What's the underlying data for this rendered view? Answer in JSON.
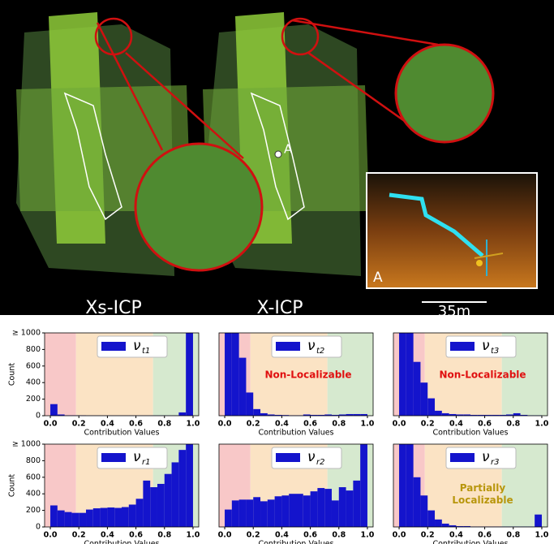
{
  "image": {
    "labels": [
      "Xs-ICP",
      "X-ICP"
    ],
    "scale_bar": "35m",
    "point_label": "A",
    "inset_label": "A"
  },
  "chart_data": [
    {
      "type": "histogram",
      "xlabel": "Contribution Values",
      "ylabel": "Count",
      "series": [
        {
          "name": "ν",
          "subscript": "t1",
          "color": "#1414cc",
          "values": [
            140,
            15,
            5,
            5,
            5,
            3,
            3,
            3,
            3,
            3,
            3,
            3,
            3,
            3,
            3,
            3,
            3,
            3,
            40,
            1000
          ]
        }
      ],
      "bins": [
        0,
        0.05,
        0.1,
        0.15,
        0.2,
        0.25,
        0.3,
        0.35,
        0.4,
        0.45,
        0.5,
        0.55,
        0.6,
        0.65,
        0.7,
        0.75,
        0.8,
        0.85,
        0.9,
        0.95,
        1.0
      ],
      "xlim": [
        -0.04,
        1.04
      ],
      "ylim": [
        0,
        1000
      ],
      "xticks": [
        {
          "value": 0,
          "label": "0.0"
        },
        {
          "value": 0.2,
          "label": "0.2"
        },
        {
          "value": 0.4,
          "label": "0.4"
        },
        {
          "value": 0.6,
          "label": "0.6"
        },
        {
          "value": 0.8,
          "label": "0.8"
        },
        {
          "value": 1,
          "label": "1.0"
        }
      ],
      "yticks": [
        0,
        200,
        400,
        600,
        800,
        {
          "value": 1000,
          "label": "≥ 1000"
        }
      ],
      "bands": [
        {
          "from": -0.04,
          "to": 0.18,
          "color": "#f8c8c8"
        },
        {
          "from": 0.18,
          "to": 0.72,
          "color": "#fbe3c4"
        },
        {
          "from": 0.72,
          "to": 1.04,
          "color": "#d6e9cf"
        }
      ]
    },
    {
      "type": "histogram",
      "xlabel": "Contribution Values",
      "series": [
        {
          "name": "ν",
          "subscript": "t2",
          "color": "#1414cc",
          "values": [
            1000,
            1000,
            700,
            280,
            80,
            30,
            15,
            10,
            8,
            5,
            5,
            15,
            10,
            10,
            15,
            10,
            15,
            20,
            20,
            20
          ]
        }
      ],
      "bins": [
        0,
        0.05,
        0.1,
        0.15,
        0.2,
        0.25,
        0.3,
        0.35,
        0.4,
        0.45,
        0.5,
        0.55,
        0.6,
        0.65,
        0.7,
        0.75,
        0.8,
        0.85,
        0.9,
        0.95,
        1.0
      ],
      "xlim": [
        -0.04,
        1.04
      ],
      "ylim": [
        0,
        1000
      ],
      "xticks": [
        {
          "value": 0,
          "label": "0.0"
        },
        {
          "value": 0.2,
          "label": "0.2"
        },
        {
          "value": 0.4,
          "label": "0.4"
        },
        {
          "value": 0.6,
          "label": "0.6"
        },
        {
          "value": 0.8,
          "label": "0.8"
        },
        {
          "value": 1,
          "label": "1.0"
        }
      ],
      "bands": [
        {
          "from": -0.04,
          "to": 0.18,
          "color": "#f8c8c8"
        },
        {
          "from": 0.18,
          "to": 0.72,
          "color": "#fbe3c4"
        },
        {
          "from": 0.72,
          "to": 1.04,
          "color": "#d6e9cf"
        }
      ],
      "annotation": {
        "lines": [
          "Non-Localizable"
        ],
        "color": "#e01010"
      }
    },
    {
      "type": "histogram",
      "xlabel": "Contribution Values",
      "series": [
        {
          "name": "ν",
          "subscript": "t3",
          "color": "#1414cc",
          "values": [
            1000,
            1000,
            650,
            400,
            210,
            60,
            30,
            20,
            15,
            15,
            10,
            10,
            10,
            10,
            10,
            15,
            30,
            10,
            5,
            5
          ]
        }
      ],
      "bins": [
        0,
        0.05,
        0.1,
        0.15,
        0.2,
        0.25,
        0.3,
        0.35,
        0.4,
        0.45,
        0.5,
        0.55,
        0.6,
        0.65,
        0.7,
        0.75,
        0.8,
        0.85,
        0.9,
        0.95,
        1.0
      ],
      "xlim": [
        -0.04,
        1.04
      ],
      "ylim": [
        0,
        1000
      ],
      "xticks": [
        {
          "value": 0,
          "label": "0.0"
        },
        {
          "value": 0.2,
          "label": "0.2"
        },
        {
          "value": 0.4,
          "label": "0.4"
        },
        {
          "value": 0.6,
          "label": "0.6"
        },
        {
          "value": 0.8,
          "label": "0.8"
        },
        {
          "value": 1,
          "label": "1.0"
        }
      ],
      "bands": [
        {
          "from": -0.04,
          "to": 0.18,
          "color": "#f8c8c8"
        },
        {
          "from": 0.18,
          "to": 0.72,
          "color": "#fbe3c4"
        },
        {
          "from": 0.72,
          "to": 1.04,
          "color": "#d6e9cf"
        }
      ],
      "annotation": {
        "lines": [
          "Non-Localizable"
        ],
        "color": "#e01010"
      }
    },
    {
      "type": "histogram",
      "xlabel": "Contribution Values",
      "ylabel": "Count",
      "series": [
        {
          "name": "ν",
          "subscript": "r1",
          "color": "#1414cc",
          "values": [
            260,
            200,
            180,
            170,
            170,
            210,
            225,
            230,
            235,
            230,
            240,
            270,
            340,
            560,
            480,
            520,
            640,
            780,
            930,
            1000
          ]
        }
      ],
      "bins": [
        0,
        0.05,
        0.1,
        0.15,
        0.2,
        0.25,
        0.3,
        0.35,
        0.4,
        0.45,
        0.5,
        0.55,
        0.6,
        0.65,
        0.7,
        0.75,
        0.8,
        0.85,
        0.9,
        0.95,
        1.0
      ],
      "xlim": [
        -0.04,
        1.04
      ],
      "ylim": [
        0,
        1000
      ],
      "xticks": [
        {
          "value": 0,
          "label": "0.0"
        },
        {
          "value": 0.2,
          "label": "0.2"
        },
        {
          "value": 0.4,
          "label": "0.4"
        },
        {
          "value": 0.6,
          "label": "0.6"
        },
        {
          "value": 0.8,
          "label": "0.8"
        },
        {
          "value": 1,
          "label": "1.0"
        }
      ],
      "yticks": [
        0,
        200,
        400,
        600,
        800,
        {
          "value": 1000,
          "label": "≥ 1000"
        }
      ],
      "bands": [
        {
          "from": -0.04,
          "to": 0.18,
          "color": "#f8c8c8"
        },
        {
          "from": 0.18,
          "to": 0.72,
          "color": "#fbe3c4"
        },
        {
          "from": 0.72,
          "to": 1.04,
          "color": "#d6e9cf"
        }
      ]
    },
    {
      "type": "histogram",
      "xlabel": "Contribution Values",
      "series": [
        {
          "name": "ν",
          "subscript": "r2",
          "color": "#1414cc",
          "values": [
            210,
            320,
            330,
            330,
            360,
            310,
            330,
            370,
            380,
            400,
            400,
            380,
            430,
            470,
            460,
            320,
            480,
            440,
            560,
            1000
          ]
        }
      ],
      "bins": [
        0,
        0.05,
        0.1,
        0.15,
        0.2,
        0.25,
        0.3,
        0.35,
        0.4,
        0.45,
        0.5,
        0.55,
        0.6,
        0.65,
        0.7,
        0.75,
        0.8,
        0.85,
        0.9,
        0.95,
        1.0
      ],
      "xlim": [
        -0.04,
        1.04
      ],
      "ylim": [
        0,
        1000
      ],
      "xticks": [
        {
          "value": 0,
          "label": "0.0"
        },
        {
          "value": 0.2,
          "label": "0.2"
        },
        {
          "value": 0.4,
          "label": "0.4"
        },
        {
          "value": 0.6,
          "label": "0.6"
        },
        {
          "value": 0.8,
          "label": "0.8"
        },
        {
          "value": 1,
          "label": "1.0"
        }
      ],
      "bands": [
        {
          "from": -0.04,
          "to": 0.18,
          "color": "#f8c8c8"
        },
        {
          "from": 0.18,
          "to": 0.72,
          "color": "#fbe3c4"
        },
        {
          "from": 0.72,
          "to": 1.04,
          "color": "#d6e9cf"
        }
      ]
    },
    {
      "type": "histogram",
      "xlabel": "Contribution Values",
      "series": [
        {
          "name": "ν",
          "subscript": "r3",
          "color": "#1414cc",
          "values": [
            1000,
            1000,
            600,
            380,
            200,
            90,
            40,
            20,
            10,
            10,
            5,
            5,
            5,
            5,
            5,
            5,
            5,
            5,
            5,
            150
          ]
        }
      ],
      "bins": [
        0,
        0.05,
        0.1,
        0.15,
        0.2,
        0.25,
        0.3,
        0.35,
        0.4,
        0.45,
        0.5,
        0.55,
        0.6,
        0.65,
        0.7,
        0.75,
        0.8,
        0.85,
        0.9,
        0.95,
        1.0
      ],
      "xlim": [
        -0.04,
        1.04
      ],
      "ylim": [
        0,
        1000
      ],
      "xticks": [
        {
          "value": 0,
          "label": "0.0"
        },
        {
          "value": 0.2,
          "label": "0.2"
        },
        {
          "value": 0.4,
          "label": "0.4"
        },
        {
          "value": 0.6,
          "label": "0.6"
        },
        {
          "value": 0.8,
          "label": "0.8"
        },
        {
          "value": 1,
          "label": "1.0"
        }
      ],
      "bands": [
        {
          "from": -0.04,
          "to": 0.18,
          "color": "#f8c8c8"
        },
        {
          "from": 0.18,
          "to": 0.72,
          "color": "#fbe3c4"
        },
        {
          "from": 0.72,
          "to": 1.04,
          "color": "#d6e9cf"
        }
      ],
      "annotation": {
        "lines": [
          "Partially",
          "Localizable"
        ],
        "color": "#b8960c"
      }
    }
  ]
}
